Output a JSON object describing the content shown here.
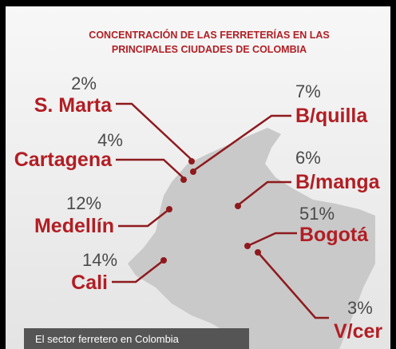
{
  "title": [
    "CONCENTRACIÓN DE LAS FERRETERÍAS EN LAS",
    "PRINCIPALES CIUDADES DE COLOMBIA"
  ],
  "cities": [
    {
      "name": "S. Marta",
      "share": "2%"
    },
    {
      "name": "Cartagena",
      "share": "4%"
    },
    {
      "name": "Medellín",
      "share": "12%"
    },
    {
      "name": "Cali",
      "share": "14%"
    },
    {
      "name": "B/quilla",
      "share": "7%"
    },
    {
      "name": "B/manga",
      "share": "6%"
    },
    {
      "name": "Bogotá",
      "share": "51%"
    },
    {
      "name": "V/cer",
      "share": "3%"
    }
  ],
  "caption": "El sector ferretero en Colombia"
}
